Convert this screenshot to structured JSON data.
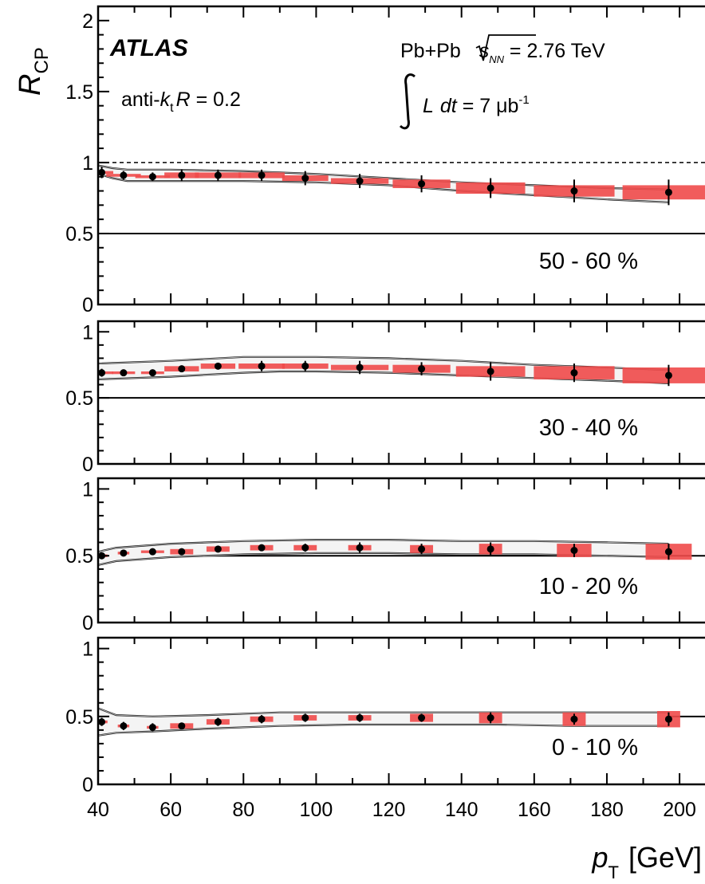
{
  "chart_data": {
    "type": "scatter",
    "ylabel_main": "R",
    "ylabel_sub": "CP",
    "xlabel_main": "p",
    "xlabel_sub": "T",
    "xlabel_unit": "[GeV]",
    "xlim": [
      40,
      207
    ],
    "x_ticks": [
      40,
      60,
      80,
      100,
      120,
      140,
      160,
      180,
      200
    ],
    "x_tick_labels": [
      "40",
      "60",
      "80",
      "100",
      "120",
      "140",
      "160",
      "180",
      "200"
    ],
    "annotations": {
      "experiment": "ATLAS",
      "algorithm_prefix": "anti-",
      "algorithm_k": "k",
      "algorithm_t": "t",
      "algorithm_R": "R",
      "algorithm_suffix": " = 0.2",
      "collision_prefix": "Pb+Pb ",
      "collision_s": "s",
      "collision_nn": "NN",
      "collision_suffix": " = 2.76 TeV",
      "lumi_L": "L",
      "lumi_dt": "dt",
      "lumi_value": " = 7 μb",
      "lumi_exp": "-1"
    },
    "panels": [
      {
        "centrality": "50 - 60 %",
        "ylim": [
          0,
          2.1
        ],
        "y_ticks": [
          0,
          0.5,
          1,
          1.5,
          2
        ],
        "y_tick_labels": [
          "0",
          "0.5",
          "1",
          "1.5",
          "2"
        ],
        "ref_lines": [
          1
        ],
        "points": [
          {
            "x": 41,
            "y": 0.93,
            "err": 0.04
          },
          {
            "x": 47,
            "y": 0.91,
            "err": 0.03
          },
          {
            "x": 55,
            "y": 0.9,
            "err": 0.03
          },
          {
            "x": 63,
            "y": 0.91,
            "err": 0.04
          },
          {
            "x": 73,
            "y": 0.91,
            "err": 0.04
          },
          {
            "x": 85,
            "y": 0.91,
            "err": 0.04
          },
          {
            "x": 97,
            "y": 0.89,
            "err": 0.05
          },
          {
            "x": 112,
            "y": 0.87,
            "err": 0.05
          },
          {
            "x": 129,
            "y": 0.85,
            "err": 0.06
          },
          {
            "x": 148,
            "y": 0.82,
            "err": 0.07
          },
          {
            "x": 171,
            "y": 0.8,
            "err": 0.08
          },
          {
            "x": 197,
            "y": 0.79,
            "err": 0.09
          }
        ],
        "syst_halfwidth": [
          0.02,
          0.03,
          0.03,
          0.03,
          0.04,
          0.04,
          0.04,
          0.05,
          0.05,
          0.06,
          0.07,
          0.08
        ],
        "syst_halfheight": [
          0.01,
          0.01,
          0.01,
          0.02,
          0.02,
          0.02,
          0.02,
          0.02,
          0.03,
          0.04,
          0.04,
          0.05
        ],
        "band_x": [
          40,
          44,
          48,
          60,
          80,
          100,
          120,
          140,
          160,
          180,
          197
        ],
        "band_upper": [
          0.98,
          0.96,
          0.95,
          0.95,
          0.94,
          0.92,
          0.89,
          0.86,
          0.84,
          0.82,
          0.81
        ],
        "band_lower": [
          0.92,
          0.89,
          0.87,
          0.87,
          0.87,
          0.86,
          0.84,
          0.8,
          0.77,
          0.74,
          0.72
        ]
      },
      {
        "centrality": "30 - 40 %",
        "ylim": [
          0,
          1.08
        ],
        "y_ticks": [
          0,
          0.5,
          1
        ],
        "y_tick_labels": [
          "0",
          "0.5",
          "1"
        ],
        "ref_lines": [],
        "points": [
          {
            "x": 41,
            "y": 0.69,
            "err": 0.03
          },
          {
            "x": 47,
            "y": 0.69,
            "err": 0.02
          },
          {
            "x": 55,
            "y": 0.69,
            "err": 0.02
          },
          {
            "x": 63,
            "y": 0.72,
            "err": 0.02
          },
          {
            "x": 73,
            "y": 0.74,
            "err": 0.02
          },
          {
            "x": 85,
            "y": 0.74,
            "err": 0.04
          },
          {
            "x": 97,
            "y": 0.74,
            "err": 0.04
          },
          {
            "x": 112,
            "y": 0.73,
            "err": 0.05
          },
          {
            "x": 129,
            "y": 0.72,
            "err": 0.05
          },
          {
            "x": 148,
            "y": 0.7,
            "err": 0.07
          },
          {
            "x": 171,
            "y": 0.69,
            "err": 0.07
          },
          {
            "x": 197,
            "y": 0.67,
            "err": 0.08
          }
        ],
        "syst_halfwidth": [
          0.02,
          0.02,
          0.02,
          0.03,
          0.03,
          0.04,
          0.04,
          0.05,
          0.05,
          0.06,
          0.07,
          0.08
        ],
        "syst_halfheight": [
          0.01,
          0.01,
          0.01,
          0.02,
          0.02,
          0.02,
          0.02,
          0.02,
          0.03,
          0.04,
          0.05,
          0.06
        ],
        "band_x": [
          40,
          60,
          80,
          90,
          100,
          120,
          140,
          160,
          180,
          197
        ],
        "band_upper": [
          0.76,
          0.78,
          0.81,
          0.81,
          0.81,
          0.8,
          0.78,
          0.75,
          0.73,
          0.71
        ],
        "band_lower": [
          0.64,
          0.66,
          0.69,
          0.7,
          0.7,
          0.69,
          0.67,
          0.65,
          0.63,
          0.61
        ]
      },
      {
        "centrality": "10 - 20 %",
        "ylim": [
          0,
          1.08
        ],
        "y_ticks": [
          0,
          0.5,
          1
        ],
        "y_tick_labels": [
          "0",
          "0.5",
          "1"
        ],
        "ref_lines": [
          0.5
        ],
        "points": [
          {
            "x": 41,
            "y": 0.5,
            "err": 0.02
          },
          {
            "x": 47,
            "y": 0.52,
            "err": 0.02
          },
          {
            "x": 55,
            "y": 0.53,
            "err": 0.02
          },
          {
            "x": 63,
            "y": 0.53,
            "err": 0.02
          },
          {
            "x": 73,
            "y": 0.55,
            "err": 0.02
          },
          {
            "x": 85,
            "y": 0.56,
            "err": 0.02
          },
          {
            "x": 97,
            "y": 0.56,
            "err": 0.03
          },
          {
            "x": 112,
            "y": 0.56,
            "err": 0.04
          },
          {
            "x": 129,
            "y": 0.55,
            "err": 0.04
          },
          {
            "x": 148,
            "y": 0.55,
            "err": 0.05
          },
          {
            "x": 171,
            "y": 0.54,
            "err": 0.05
          },
          {
            "x": 197,
            "y": 0.53,
            "err": 0.06
          }
        ],
        "syst_halfwidth": [
          0.01,
          0.01,
          0.02,
          0.02,
          0.02,
          0.02,
          0.02,
          0.02,
          0.02,
          0.02,
          0.03,
          0.04
        ],
        "syst_halfheight": [
          0.01,
          0.01,
          0.01,
          0.02,
          0.02,
          0.02,
          0.02,
          0.02,
          0.03,
          0.04,
          0.05,
          0.06
        ],
        "band_x": [
          40,
          45,
          60,
          80,
          100,
          120,
          140,
          160,
          180,
          197
        ],
        "band_upper": [
          0.53,
          0.56,
          0.59,
          0.61,
          0.62,
          0.62,
          0.61,
          0.61,
          0.6,
          0.59
        ],
        "band_lower": [
          0.43,
          0.46,
          0.49,
          0.51,
          0.52,
          0.52,
          0.51,
          0.51,
          0.5,
          0.49
        ]
      },
      {
        "centrality": "0 - 10 %",
        "ylim": [
          0,
          1.08
        ],
        "y_ticks": [
          0,
          0.5,
          1
        ],
        "y_tick_labels": [
          "0",
          "0.5",
          "1"
        ],
        "ref_lines": [
          0.5
        ],
        "points": [
          {
            "x": 41,
            "y": 0.46,
            "err": 0.03
          },
          {
            "x": 47,
            "y": 0.43,
            "err": 0.03
          },
          {
            "x": 55,
            "y": 0.42,
            "err": 0.03
          },
          {
            "x": 63,
            "y": 0.43,
            "err": 0.02
          },
          {
            "x": 73,
            "y": 0.46,
            "err": 0.03
          },
          {
            "x": 85,
            "y": 0.48,
            "err": 0.03
          },
          {
            "x": 97,
            "y": 0.49,
            "err": 0.03
          },
          {
            "x": 112,
            "y": 0.49,
            "err": 0.03
          },
          {
            "x": 129,
            "y": 0.49,
            "err": 0.03
          },
          {
            "x": 148,
            "y": 0.49,
            "err": 0.04
          },
          {
            "x": 171,
            "y": 0.48,
            "err": 0.04
          },
          {
            "x": 197,
            "y": 0.48,
            "err": 0.05
          }
        ],
        "syst_halfwidth": [
          0.01,
          0.01,
          0.01,
          0.02,
          0.02,
          0.02,
          0.02,
          0.02,
          0.02,
          0.02,
          0.02,
          0.02
        ],
        "syst_halfheight": [
          0.01,
          0.01,
          0.01,
          0.02,
          0.02,
          0.02,
          0.02,
          0.02,
          0.03,
          0.04,
          0.05,
          0.06
        ],
        "band_x": [
          40,
          45,
          55,
          70,
          90,
          110,
          130,
          150,
          170,
          197
        ],
        "band_upper": [
          0.56,
          0.51,
          0.5,
          0.51,
          0.53,
          0.53,
          0.53,
          0.53,
          0.53,
          0.53
        ],
        "band_lower": [
          0.36,
          0.38,
          0.39,
          0.41,
          0.43,
          0.44,
          0.44,
          0.44,
          0.43,
          0.43
        ]
      }
    ]
  },
  "colors": {
    "marker": "#000000",
    "syst_box": "#f04a4a",
    "band_stroke": "#222222",
    "band_inner": "#bdbdbd"
  }
}
